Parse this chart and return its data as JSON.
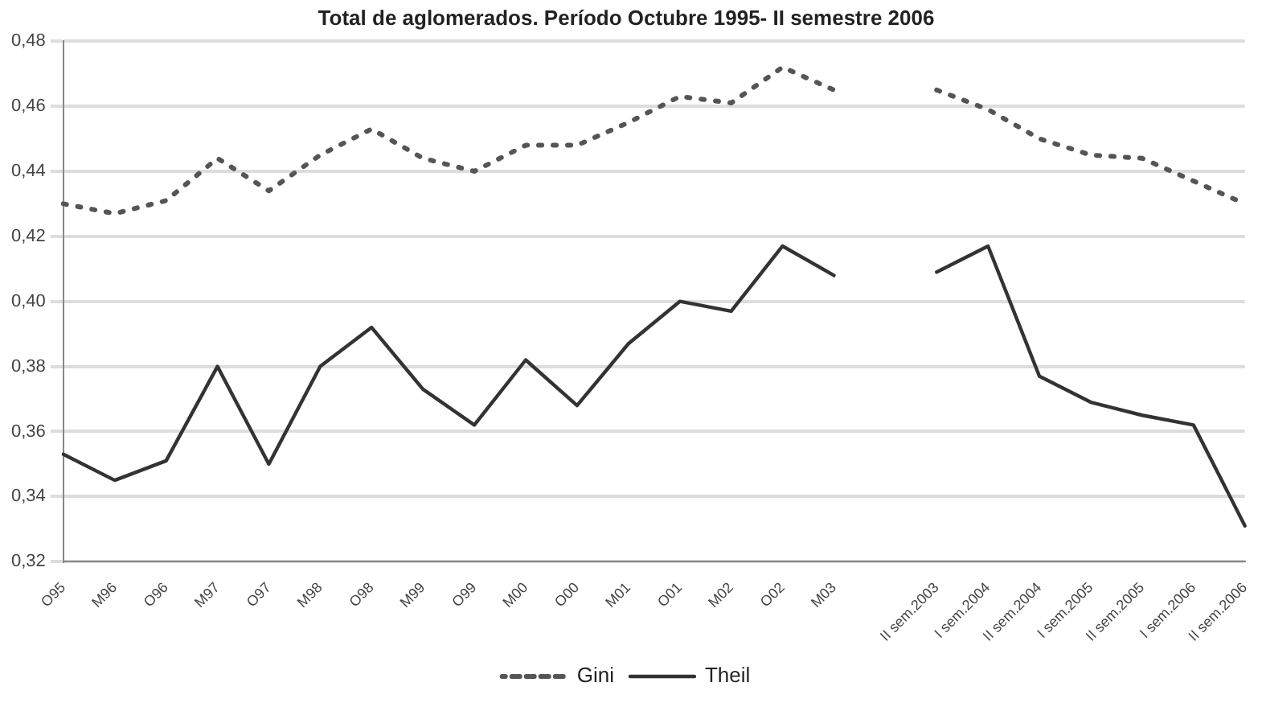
{
  "chart_data": {
    "type": "line",
    "title": "Total de aglomerados. Período Octubre 1995- II semestre 2006",
    "categories": [
      "O95",
      "M96",
      "O96",
      "M97",
      "O97",
      "M98",
      "O98",
      "M99",
      "O99",
      "M00",
      "O00",
      "M01",
      "O01",
      "M02",
      "O02",
      "M03",
      null,
      "II sem.2003",
      "I sem.2004",
      "II sem.2004",
      "I sem.2005",
      "II sem.2005",
      "I sem.2006",
      "II sem.2006"
    ],
    "series": [
      {
        "name": "Gini",
        "color": "#555555",
        "line_style": "dotted",
        "values": [
          0.43,
          0.427,
          0.431,
          0.444,
          0.434,
          0.445,
          0.453,
          0.444,
          0.44,
          0.448,
          0.448,
          0.455,
          0.463,
          0.461,
          0.472,
          0.465,
          null,
          0.465,
          0.459,
          0.45,
          0.445,
          0.444,
          0.437,
          0.43
        ]
      },
      {
        "name": "Theil",
        "color": "#333333",
        "line_style": "solid",
        "values": [
          0.353,
          0.345,
          0.351,
          0.38,
          0.35,
          0.38,
          0.392,
          0.373,
          0.362,
          0.382,
          0.368,
          0.387,
          0.4,
          0.397,
          0.417,
          0.408,
          null,
          0.409,
          0.417,
          0.377,
          0.369,
          0.365,
          0.362,
          0.331
        ]
      }
    ],
    "ylim": [
      0.32,
      0.48
    ],
    "yticks": [
      {
        "value": 0.32,
        "label": "0,32"
      },
      {
        "value": 0.34,
        "label": "0,34"
      },
      {
        "value": 0.36,
        "label": "0,36"
      },
      {
        "value": 0.38,
        "label": "0,38"
      },
      {
        "value": 0.4,
        "label": "0,40"
      },
      {
        "value": 0.42,
        "label": "0,42"
      },
      {
        "value": 0.44,
        "label": "0,44"
      },
      {
        "value": 0.46,
        "label": "0,46"
      },
      {
        "value": 0.48,
        "label": "0,48"
      }
    ],
    "grid": "y",
    "legend": "bottom",
    "marker": "none"
  }
}
